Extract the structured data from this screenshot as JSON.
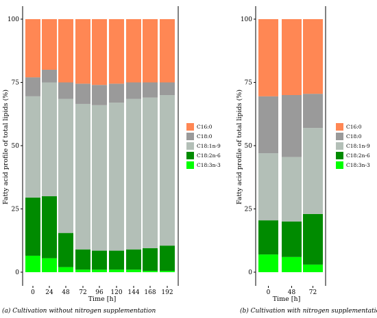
{
  "figure": {
    "captions": [
      "(a)   Cultivation without nitrogen supplementation",
      "(b) Cultivation with nitrogen supplementation"
    ]
  },
  "chart_data": [
    {
      "type": "bar",
      "stacked": true,
      "xlabel": "Time [h]",
      "ylabel": "Fatty acid profile of total lipids (%)",
      "ylim": [
        0,
        100
      ],
      "yticks": [
        0,
        25,
        50,
        75,
        100
      ],
      "categories": [
        "0",
        "24",
        "48",
        "72",
        "96",
        "120",
        "144",
        "168",
        "192"
      ],
      "legend_position": "right",
      "series": [
        {
          "name": "C18:3n-3",
          "color": "#00ff00",
          "values": [
            6.5,
            5.5,
            2,
            1,
            1,
            1,
            1,
            0.5,
            0.5
          ]
        },
        {
          "name": "C18:2n-6",
          "color": "#008b00",
          "values": [
            23,
            24.5,
            13.5,
            8,
            7.5,
            7.5,
            8,
            9,
            10
          ]
        },
        {
          "name": "C18:1n-9",
          "color": "#b3bfb7",
          "values": [
            40,
            45,
            53,
            57.5,
            57.5,
            58.5,
            59.5,
            59.5,
            59.5
          ]
        },
        {
          "name": "C18:0",
          "color": "#9a9a9a",
          "values": [
            7.5,
            5,
            6.5,
            8,
            8,
            7.5,
            6.5,
            6,
            5
          ]
        },
        {
          "name": "C16:0",
          "color": "#ff8754",
          "values": [
            23,
            20,
            25,
            25.5,
            26,
            25.5,
            25,
            25,
            25
          ]
        }
      ],
      "legend_order": [
        "C16:0",
        "C18:0",
        "C18:1n-9",
        "C18:2n-6",
        "C18:3n-3"
      ]
    },
    {
      "type": "bar",
      "stacked": true,
      "xlabel": "Time [h]",
      "ylabel": "Fatty acid profile of total lipids (%)",
      "ylim": [
        0,
        100
      ],
      "yticks": [
        0,
        25,
        50,
        75,
        100
      ],
      "categories": [
        "0",
        "48",
        "72"
      ],
      "legend_position": "right",
      "series": [
        {
          "name": "C18:3n-3",
          "color": "#00ff00",
          "values": [
            7,
            6,
            3
          ]
        },
        {
          "name": "C18:2n-6",
          "color": "#008b00",
          "values": [
            13.5,
            14,
            20
          ]
        },
        {
          "name": "C18:1n-9",
          "color": "#b3bfb7",
          "values": [
            26.5,
            25.5,
            34
          ]
        },
        {
          "name": "C18:0",
          "color": "#9a9a9a",
          "values": [
            22.5,
            24.5,
            13.5
          ]
        },
        {
          "name": "C16:0",
          "color": "#ff8754",
          "values": [
            30.5,
            30,
            29.5
          ]
        }
      ],
      "legend_order": [
        "C16:0",
        "C18:0",
        "C18:1n-9",
        "C18:2n-6",
        "C18:3n-3"
      ]
    }
  ]
}
